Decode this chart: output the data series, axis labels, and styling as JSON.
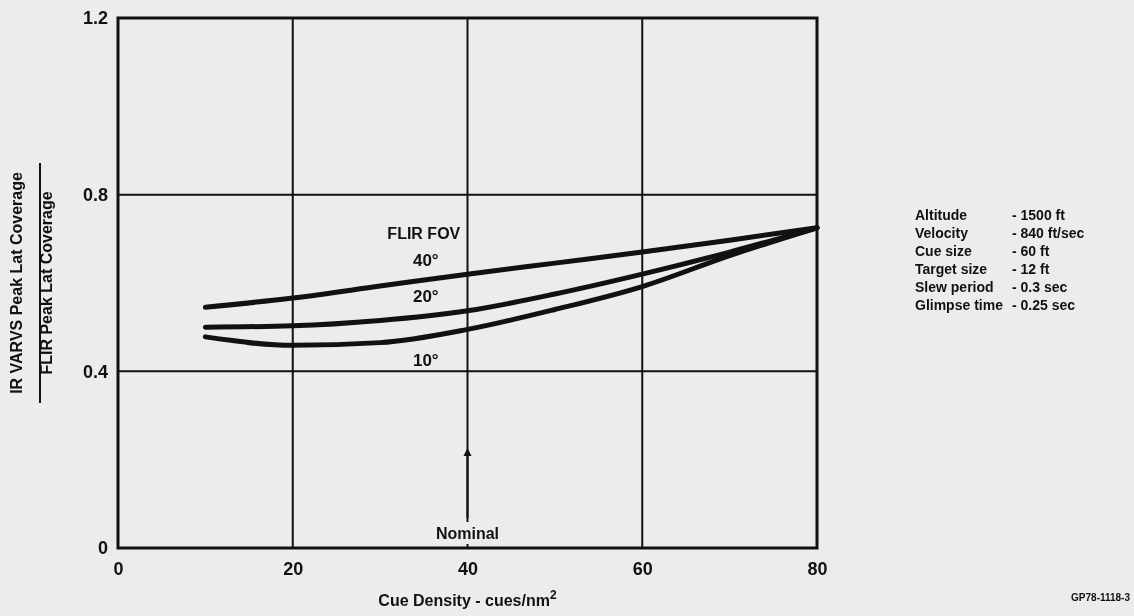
{
  "chart_data": {
    "type": "line",
    "xlabel": "Cue Density - cues/nm$^{2}$",
    "ylabel": "IR VARVS Peak Lat Coverage\nFLIR Peak Lat Coverage",
    "xlim": [
      0,
      80
    ],
    "xticks": [
      0,
      20,
      40,
      60,
      80
    ],
    "ylim": [
      0,
      1.2
    ],
    "yticks": [
      0,
      0.4,
      0.8,
      1.2
    ],
    "grid": true,
    "marker": "none",
    "line_style": "solid",
    "x": [
      10,
      20,
      30,
      40,
      50,
      60,
      70,
      80
    ],
    "series": [
      {
        "name": "40°",
        "color": "#111111",
        "values": [
          0.545,
          0.566,
          0.593,
          0.62,
          0.645,
          0.67,
          0.697,
          0.725
        ]
      },
      {
        "name": "20°",
        "color": "#111111",
        "values": [
          0.5,
          0.503,
          0.515,
          0.537,
          0.575,
          0.62,
          0.67,
          0.725
        ]
      },
      {
        "name": "10°",
        "color": "#111111",
        "values": [
          0.478,
          0.459,
          0.465,
          0.495,
          0.54,
          0.592,
          0.662,
          0.725
        ]
      }
    ],
    "annotations": [
      "FLIR FOV",
      "Altitude - 1500 ft",
      "Velocity - 840 ft/sec",
      "Cue size - 60 ft",
      "Target size - 12 ft",
      "Slew period - 0.3 sec",
      "Glimpse time - 0.25 sec",
      "GP78-1118-3",
      "Nominal"
    ]
  }
}
